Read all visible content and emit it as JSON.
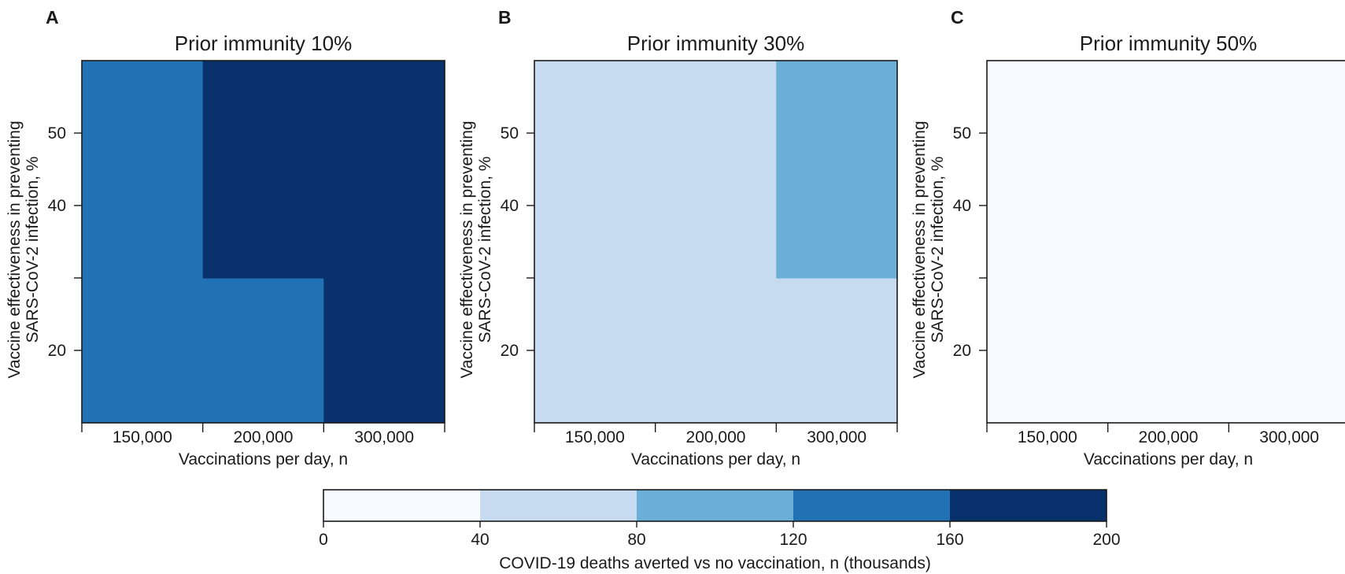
{
  "chart_data": [
    {
      "type": "heatmap",
      "panel_label": "A",
      "title": "Prior immunity 10%",
      "xlabel": "Vaccinations per day, n",
      "ylabel": [
        "Vaccine effectiveness in preventing",
        "SARS-CoV-2 infection, %"
      ],
      "x": [
        "150,000",
        "200,000",
        "300,000"
      ],
      "y": [
        15,
        25,
        35,
        45,
        55
      ],
      "ylim": [
        10,
        60
      ],
      "yticks": [
        20,
        30,
        40,
        50
      ],
      "ytick_labels": [
        "20",
        "",
        "40",
        "50"
      ],
      "values": [
        [
          140,
          140,
          180
        ],
        [
          140,
          140,
          180
        ],
        [
          140,
          180,
          180
        ],
        [
          140,
          180,
          180
        ],
        [
          140,
          180,
          180
        ]
      ]
    },
    {
      "type": "heatmap",
      "panel_label": "B",
      "title": "Prior immunity 30%",
      "xlabel": "Vaccinations per day, n",
      "ylabel": [
        "Vaccine effectiveness in preventing",
        "SARS-CoV-2 infection, %"
      ],
      "x": [
        "150,000",
        "200,000",
        "300,000"
      ],
      "y": [
        15,
        25,
        35,
        45,
        55
      ],
      "ylim": [
        10,
        60
      ],
      "yticks": [
        20,
        30,
        40,
        50
      ],
      "ytick_labels": [
        "20",
        "",
        "40",
        "50"
      ],
      "values": [
        [
          60,
          60,
          60
        ],
        [
          60,
          60,
          60
        ],
        [
          60,
          60,
          100
        ],
        [
          60,
          60,
          100
        ],
        [
          60,
          60,
          100
        ]
      ]
    },
    {
      "type": "heatmap",
      "panel_label": "C",
      "title": "Prior immunity 50%",
      "xlabel": "Vaccinations per day, n",
      "ylabel": [
        "Vaccine effectiveness in preventing",
        "SARS-CoV-2 infection, %"
      ],
      "x": [
        "150,000",
        "200,000",
        "300,000"
      ],
      "y": [
        15,
        25,
        35,
        45,
        55
      ],
      "ylim": [
        10,
        60
      ],
      "yticks": [
        20,
        30,
        40,
        50
      ],
      "ytick_labels": [
        "20",
        "",
        "40",
        "50"
      ],
      "values": [
        [
          20,
          20,
          20
        ],
        [
          20,
          20,
          20
        ],
        [
          20,
          20,
          20
        ],
        [
          20,
          20,
          20
        ],
        [
          20,
          20,
          20
        ]
      ]
    }
  ],
  "colorbar": {
    "label": "COVID-19 deaths averted vs no vaccination, n (thousands)",
    "bounds": [
      0,
      40,
      80,
      120,
      160,
      200
    ],
    "tick_labels": [
      "0",
      "40",
      "80",
      "120",
      "160",
      "200"
    ],
    "colors": [
      "#f7fbff",
      "#c6dbef",
      "#6baed6",
      "#2171b5",
      "#08306b"
    ]
  }
}
